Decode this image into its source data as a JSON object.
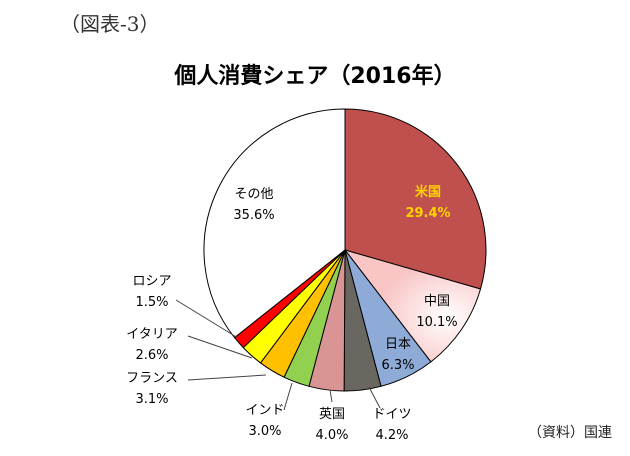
{
  "figure_label": "（図表-3）",
  "source_note": "（資料）国連",
  "chart_data": {
    "type": "pie",
    "title": "個人消費シェア（2016年）",
    "slices": [
      {
        "label": "米国",
        "value_text": "29.4%",
        "value": 29.4,
        "color": "#c0504d",
        "text_color": "#ffd400"
      },
      {
        "label": "中国",
        "value_text": "10.1%",
        "value": 10.1,
        "color": "#f9c5c5",
        "text_color": "#000000"
      },
      {
        "label": "日本",
        "value_text": "6.3%",
        "value": 6.3,
        "color": "#8eaad6",
        "text_color": "#000000"
      },
      {
        "label": "ドイツ",
        "value_text": "4.2%",
        "value": 4.2,
        "color": "#6a6760",
        "text_color": "#000000"
      },
      {
        "label": "英国",
        "value_text": "4.0%",
        "value": 4.0,
        "color": "#d99594",
        "text_color": "#000000"
      },
      {
        "label": "インド",
        "value_text": "3.0%",
        "value": 3.0,
        "color": "#92d050",
        "text_color": "#000000"
      },
      {
        "label": "フランス",
        "value_text": "3.1%",
        "value": 3.1,
        "color": "#ffc000",
        "text_color": "#000000"
      },
      {
        "label": "イタリア",
        "value_text": "2.6%",
        "value": 2.6,
        "color": "#ffff00",
        "text_color": "#000000"
      },
      {
        "label": "ロシア",
        "value_text": "1.5%",
        "value": 1.5,
        "color": "#ff0000",
        "text_color": "#000000"
      },
      {
        "label": "その他",
        "value_text": "35.6%",
        "value": 35.6,
        "color": "#ffffff",
        "text_color": "#000000"
      }
    ]
  }
}
